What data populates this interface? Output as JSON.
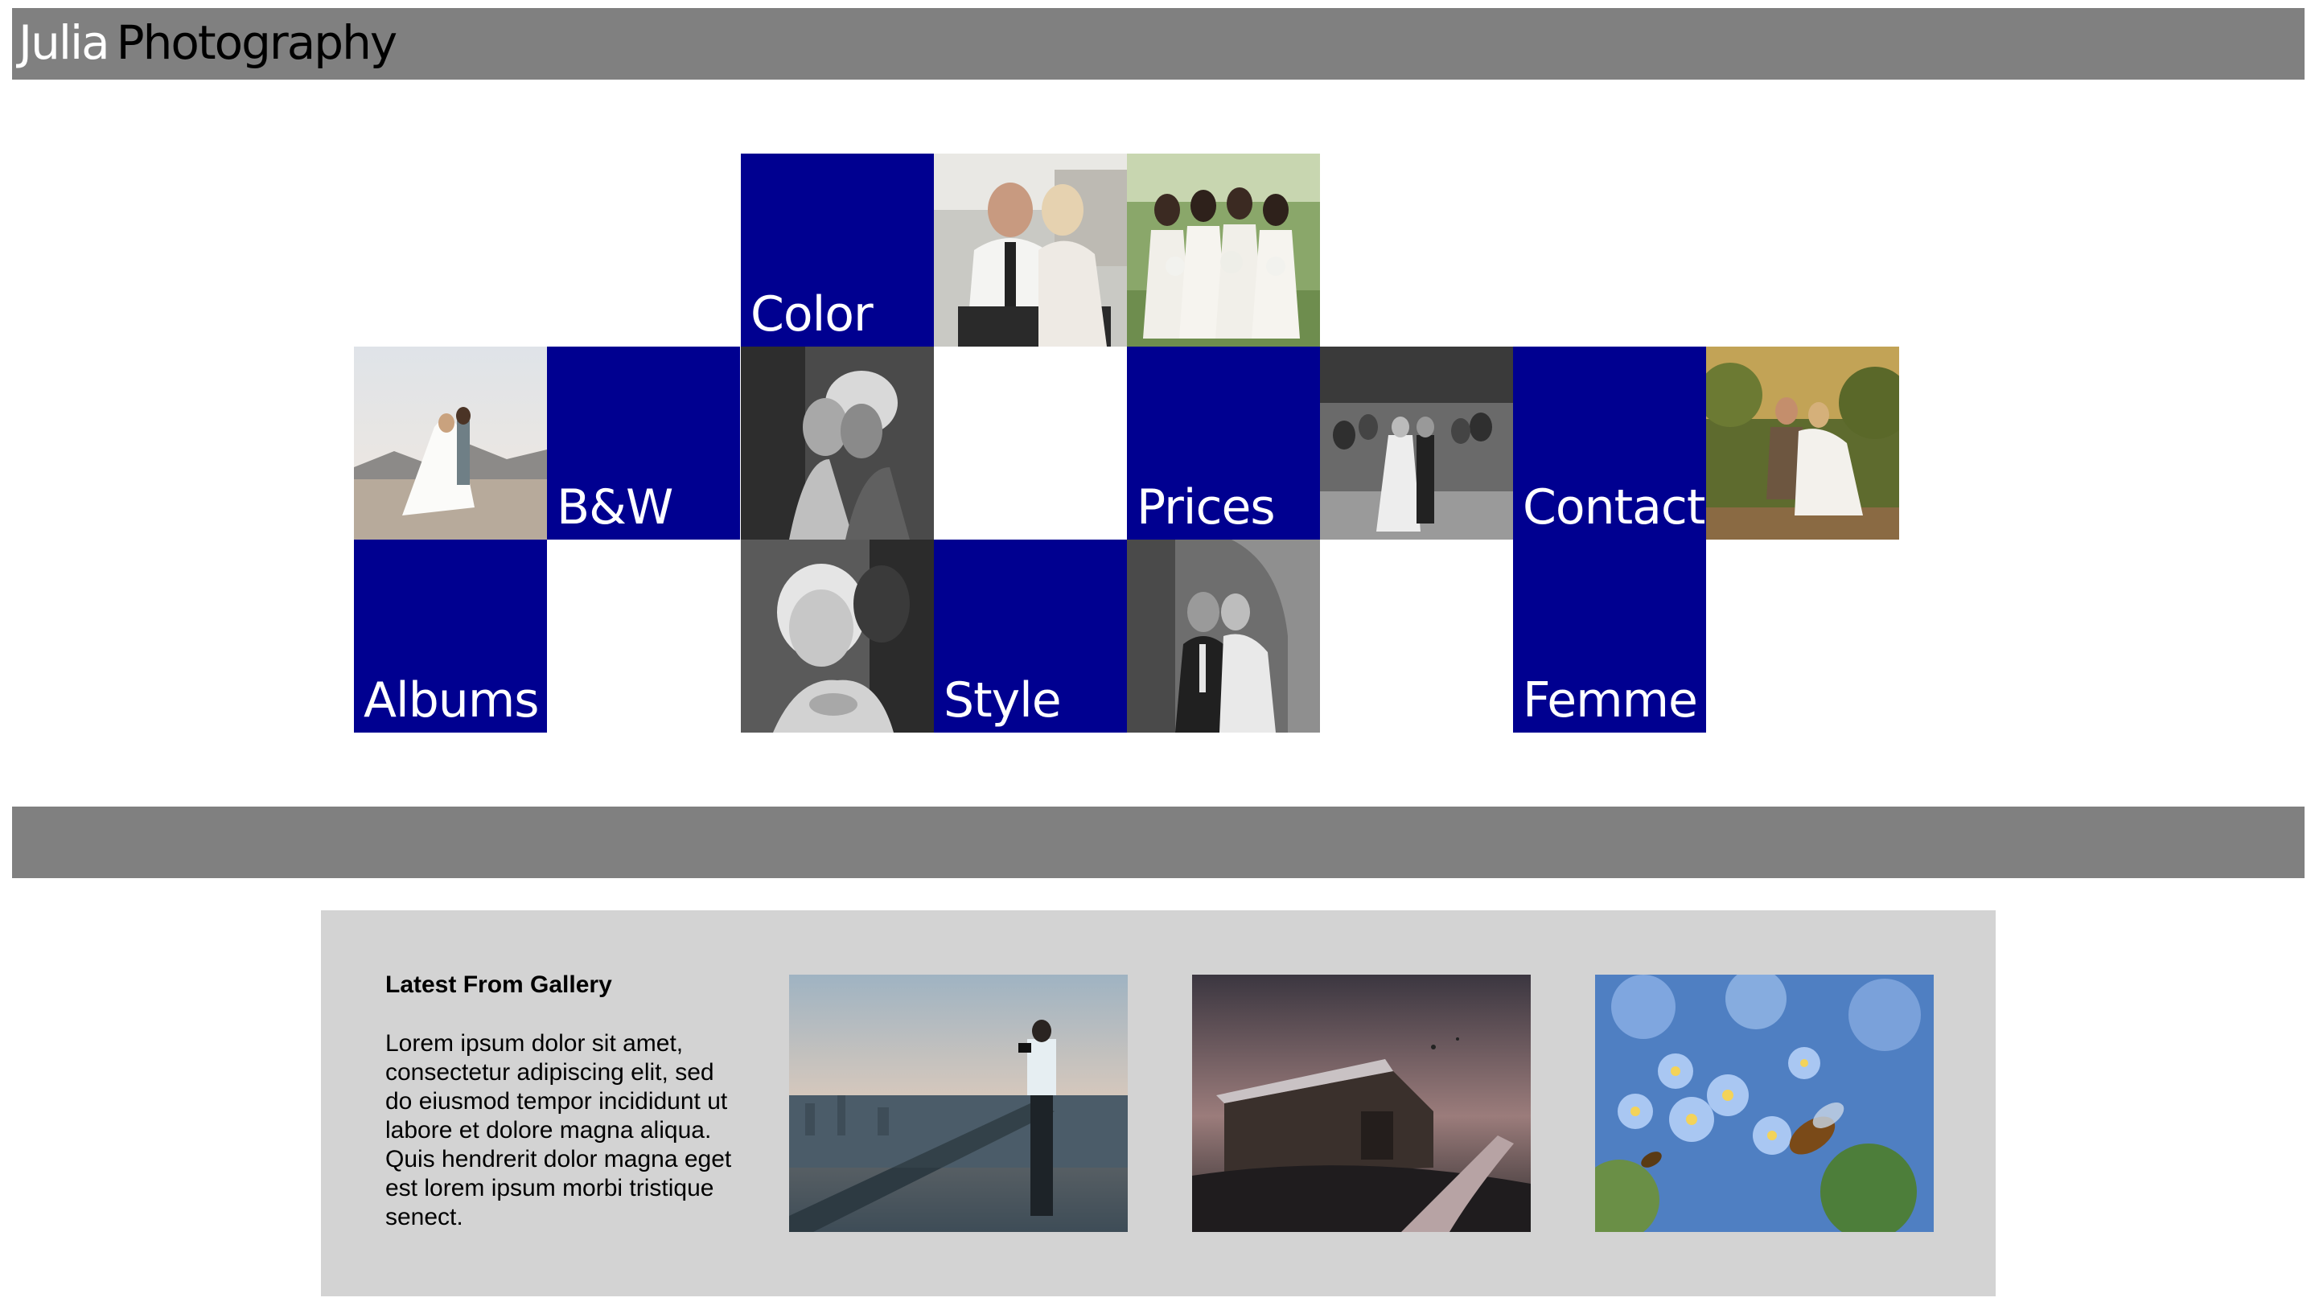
{
  "header": {
    "brand_first": "Julia",
    "brand_last": "Photography"
  },
  "nav_tiles": [
    {
      "id": "color",
      "label": "Color"
    },
    {
      "id": "bw",
      "label": "B&W"
    },
    {
      "id": "prices",
      "label": "Prices"
    },
    {
      "id": "contact",
      "label": "Contact"
    },
    {
      "id": "albums",
      "label": "Albums"
    },
    {
      "id": "style",
      "label": "Style"
    },
    {
      "id": "femme",
      "label": "Femme"
    }
  ],
  "gallery": {
    "title": "Latest From Gallery",
    "text": "Lorem ipsum dolor sit amet, consectetur adipiscing elit, sed do eiusmod tempor incididunt ut labore et dolore magna aliqua. Quis hendrerit dolor magna eget est lorem ipsum morbi tristique senect."
  },
  "colors": {
    "header_bar": "#808080",
    "tile_blue": "#000090",
    "gallery_bg": "#d3d3d3"
  }
}
